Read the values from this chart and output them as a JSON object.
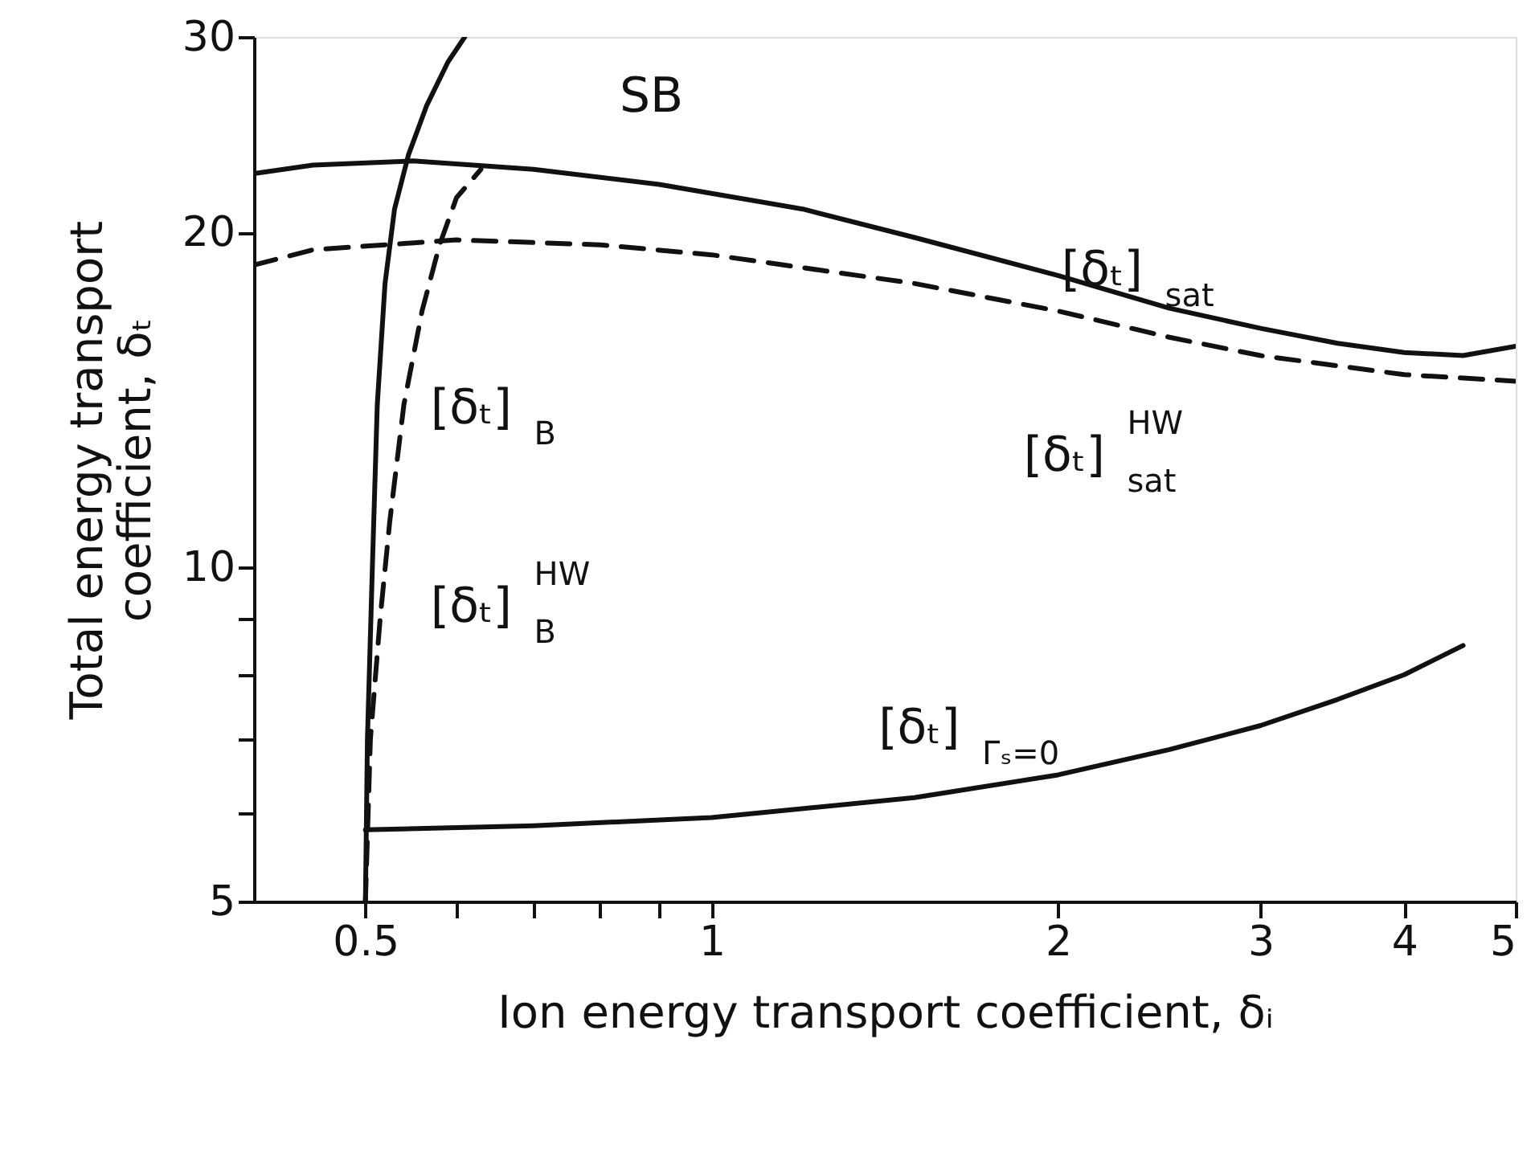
{
  "chart_data": {
    "type": "line",
    "xlabel": "Ion energy transport coefficient, δᵢ",
    "ylabel": "Total energy transport\ncoefficient, δₜ",
    "log": "xy",
    "grid": false,
    "xlim": [
      0.4,
      5
    ],
    "ylim": [
      5,
      30
    ],
    "xticks": [
      0.5,
      {
        "value": 0.6,
        "label": null
      },
      {
        "value": 0.7,
        "label": null
      },
      {
        "value": 0.8,
        "label": null
      },
      {
        "value": 0.9,
        "label": null
      },
      1,
      2,
      3,
      4,
      5
    ],
    "yticks": [
      5,
      {
        "value": 6,
        "label": null
      },
      {
        "value": 7,
        "label": null
      },
      {
        "value": 8,
        "label": null
      },
      {
        "value": 9,
        "label": null
      },
      10,
      20,
      30
    ],
    "series": [
      {
        "color": "#111111",
        "line_style": "solid",
        "x": [
          0.5,
          0.502,
          0.507,
          0.512,
          0.52,
          0.53,
          0.545,
          0.565,
          0.59,
          0.61
        ],
        "values": [
          5,
          7,
          10,
          14,
          18,
          21,
          23.5,
          26,
          28.5,
          30
        ]
      },
      {
        "color": "#111111",
        "line_style": "dashed",
        "x": [
          0.5,
          0.505,
          0.515,
          0.525,
          0.54,
          0.56,
          0.58,
          0.6,
          0.63
        ],
        "values": [
          5,
          7,
          9,
          11,
          14,
          17,
          19.5,
          21.5,
          22.8
        ]
      },
      {
        "color": "#111111",
        "line_style": "solid",
        "x": [
          0.4,
          0.45,
          0.55,
          0.7,
          0.9,
          1.2,
          1.5,
          2,
          2.5,
          3,
          3.5,
          4,
          4.5,
          5
        ],
        "values": [
          22.6,
          23,
          23.2,
          22.8,
          22.1,
          21,
          19.8,
          18.3,
          17.1,
          16.4,
          15.9,
          15.6,
          15.5,
          15.8
        ]
      },
      {
        "color": "#111111",
        "line_style": "dashed",
        "x": [
          0.4,
          0.45,
          0.6,
          0.8,
          1,
          1.5,
          2,
          2.5,
          3,
          4,
          5
        ],
        "values": [
          18.7,
          19.3,
          19.7,
          19.5,
          19.1,
          18,
          17,
          16.1,
          15.5,
          14.9,
          14.7
        ]
      },
      {
        "color": "#111111",
        "line_style": "solid",
        "x": [
          0.5,
          0.7,
          1,
          1.5,
          2,
          2.5,
          3,
          3.5,
          4,
          4.5
        ],
        "values": [
          5.8,
          5.85,
          5.95,
          6.2,
          6.5,
          6.85,
          7.2,
          7.6,
          8.0,
          8.5
        ]
      }
    ],
    "annotations": [
      "SB",
      "[δₜ]$_{B}$",
      "[δₜ]$^{HW}$$_{B}$",
      "[δₜ]$_{sat}$",
      "[δₜ]$^{HW}$$_{sat}$",
      "[δₜ]$_{Γₛ=0}$"
    ]
  }
}
